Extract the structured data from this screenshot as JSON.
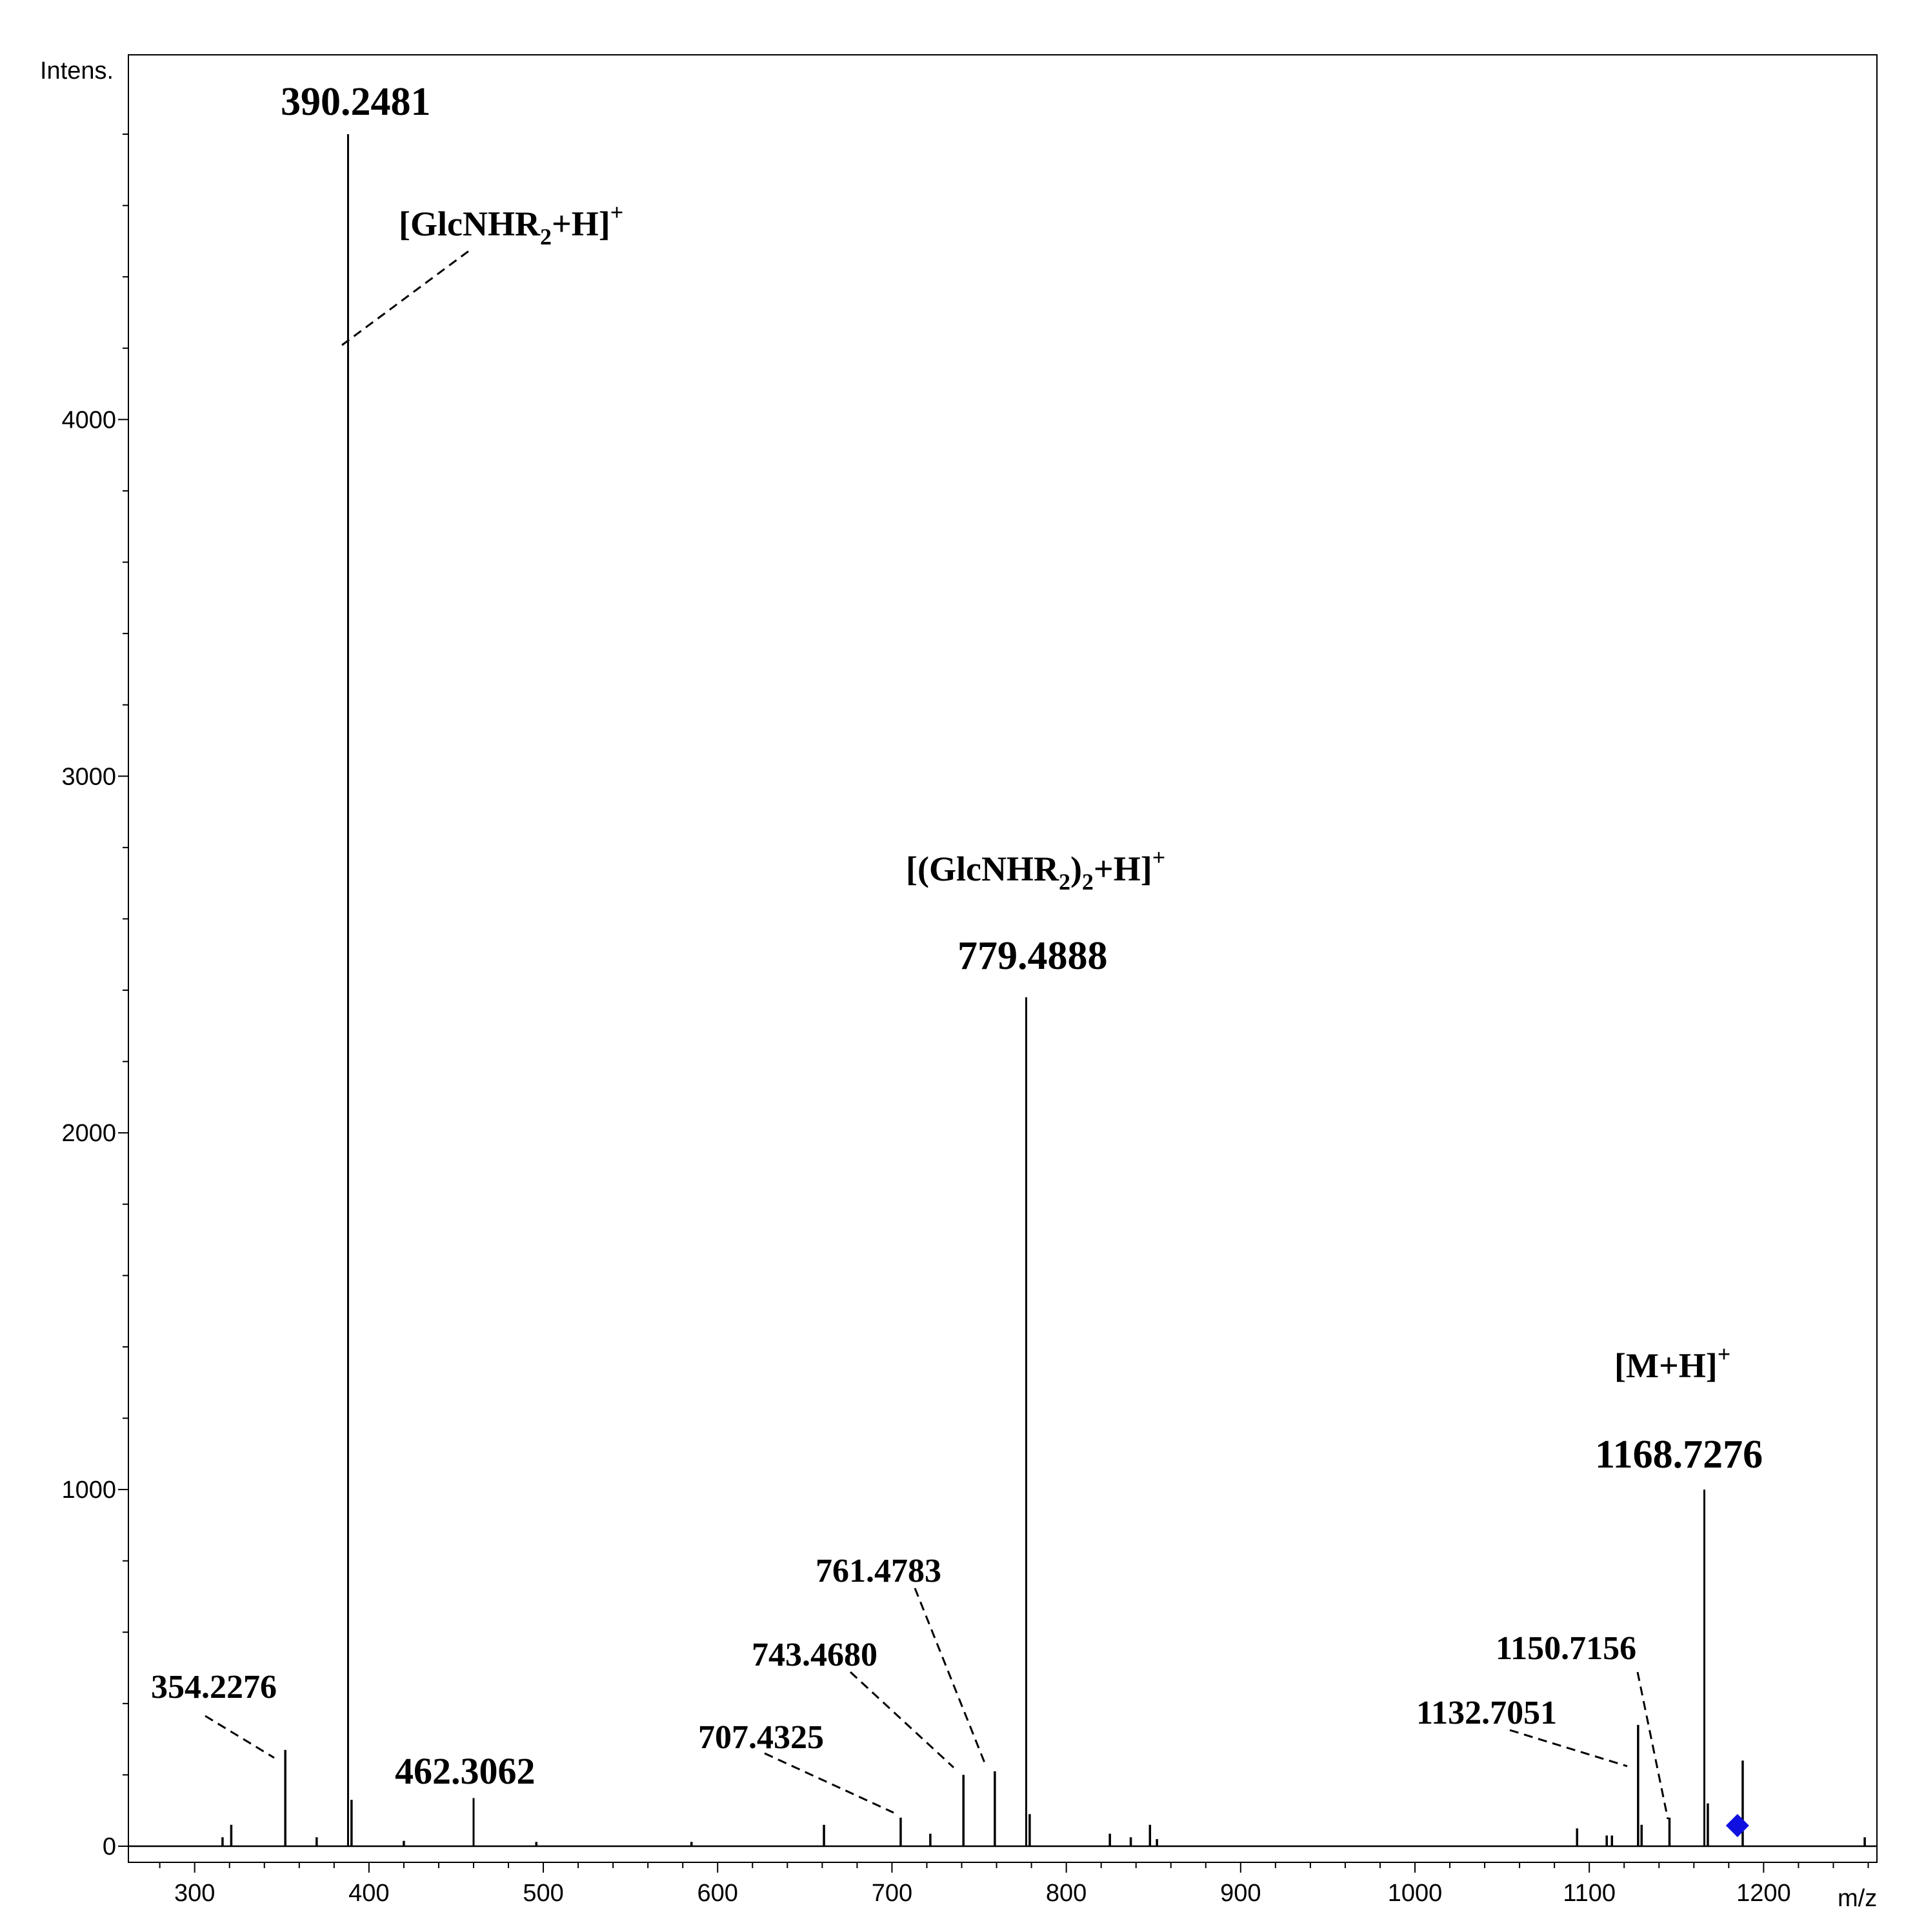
{
  "chart_data": {
    "type": "mass-spectrum",
    "ylabel": "Intens.",
    "xlabel": "m/z",
    "xlim": [
      262,
      1265
    ],
    "ylim": [
      0,
      4950
    ],
    "xticks": [
      300,
      400,
      500,
      600,
      700,
      800,
      900,
      1000,
      1100,
      1200
    ],
    "yticks": [
      0,
      1000,
      2000,
      3000,
      4000
    ],
    "grid": false,
    "peaks": [
      {
        "mz": 316,
        "intensity": 25
      },
      {
        "mz": 321,
        "intensity": 60
      },
      {
        "mz": 352,
        "intensity": 270,
        "label": "354.2276"
      },
      {
        "mz": 370,
        "intensity": 25
      },
      {
        "mz": 388,
        "intensity": 4800,
        "label": "390.2481",
        "major": true
      },
      {
        "mz": 390,
        "intensity": 130
      },
      {
        "mz": 420,
        "intensity": 15
      },
      {
        "mz": 460,
        "intensity": 135,
        "label": "462.3062",
        "major": true
      },
      {
        "mz": 496,
        "intensity": 12
      },
      {
        "mz": 585,
        "intensity": 12
      },
      {
        "mz": 661,
        "intensity": 60
      },
      {
        "mz": 705,
        "intensity": 80,
        "label": "707.4325"
      },
      {
        "mz": 722,
        "intensity": 35
      },
      {
        "mz": 741,
        "intensity": 200,
        "label": "743.4680"
      },
      {
        "mz": 759,
        "intensity": 210,
        "label": "761.4783"
      },
      {
        "mz": 777,
        "intensity": 2380,
        "label": "779.4888",
        "major": true
      },
      {
        "mz": 779,
        "intensity": 90
      },
      {
        "mz": 825,
        "intensity": 35
      },
      {
        "mz": 837,
        "intensity": 25
      },
      {
        "mz": 848,
        "intensity": 60
      },
      {
        "mz": 852,
        "intensity": 20
      },
      {
        "mz": 1093,
        "intensity": 50
      },
      {
        "mz": 1110,
        "intensity": 30
      },
      {
        "mz": 1113,
        "intensity": 30
      },
      {
        "mz": 1128,
        "intensity": 340,
        "label": "1132.7051"
      },
      {
        "mz": 1130,
        "intensity": 60
      },
      {
        "mz": 1146,
        "intensity": 80,
        "label": "1150.7156"
      },
      {
        "mz": 1166,
        "intensity": 1000,
        "label": "1168.7276",
        "major": true
      },
      {
        "mz": 1168,
        "intensity": 120
      },
      {
        "mz": 1188,
        "intensity": 240
      },
      {
        "mz": 1258,
        "intensity": 25
      }
    ],
    "ion_annotations": [
      {
        "base": "[GlcNHR",
        "sub": "2",
        "tail": "+H]",
        "sup": "+"
      },
      {
        "base": "[(GlcNHR",
        "sub": "2",
        "tail": ")",
        "sub2": "2",
        "tail2": "+H]",
        "sup": "+"
      },
      {
        "base": "[M+H]",
        "sup": "+"
      }
    ],
    "precursor_marker": {
      "mz": 1185,
      "color": "#1010e0"
    }
  }
}
